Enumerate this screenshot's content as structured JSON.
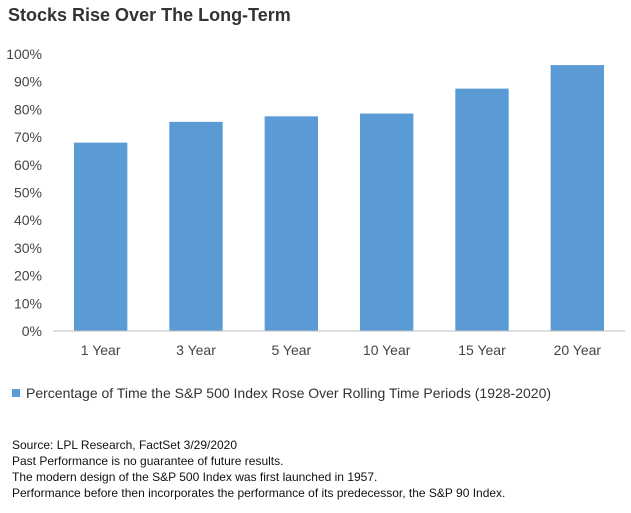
{
  "title": "Stocks Rise Over The Long-Term",
  "chart_data": {
    "type": "bar",
    "title": "Stocks Rise Over The Long-Term",
    "categories": [
      "1 Year",
      "3 Year",
      "5 Year",
      "10 Year",
      "15 Year",
      "20 Year"
    ],
    "series": [
      {
        "name": "Percentage of Time the S&P 500 Index Rose Over Rolling Time Periods (1928-2020)",
        "values": [
          68,
          75.5,
          77.5,
          78.5,
          87.5,
          96
        ]
      }
    ],
    "ylim": [
      0,
      100
    ],
    "yticks": [
      "0%",
      "10%",
      "20%",
      "30%",
      "40%",
      "50%",
      "60%",
      "70%",
      "80%",
      "90%",
      "100%"
    ],
    "grid": false,
    "legend_position": "bottom",
    "bar_color": "#5b9bd5",
    "axis_color": "#bfbfbf"
  },
  "footer": [
    "Source: LPL Research, FactSet 3/29/2020",
    "Past Performance is no guarantee of future results.",
    "The modern design of the S&P 500 Index was first launched in 1957.",
    "Performance before then incorporates the performance of its predecessor, the S&P 90 Index."
  ]
}
